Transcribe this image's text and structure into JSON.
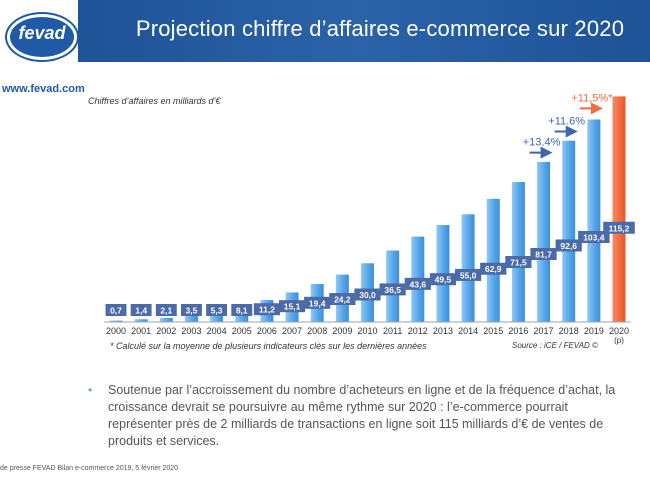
{
  "header": {
    "title": "Projection chiffre d’affaires e-commerce sur 2020"
  },
  "logo": {
    "text": "fevad",
    "url": "www.fevad.com"
  },
  "chart_data": {
    "type": "bar",
    "unit_label": "Chiffres d’affaires en milliards d’€",
    "categories": [
      "2000",
      "2001",
      "2002",
      "2003",
      "2004",
      "2005",
      "2006",
      "2007",
      "2008",
      "2009",
      "2010",
      "2011",
      "2012",
      "2013",
      "2014",
      "2015",
      "2016",
      "2017",
      "2018",
      "2019",
      "2020"
    ],
    "category_sublabels": {
      "2020": "(p)"
    },
    "values": [
      0.7,
      1.4,
      2.1,
      3.5,
      5.3,
      8.1,
      11.2,
      15.1,
      19.4,
      24.2,
      30.0,
      36.5,
      43.6,
      49.5,
      55.0,
      62.9,
      71.5,
      81.7,
      92.6,
      103.4,
      115.2
    ],
    "value_labels": [
      "0,7",
      "1,4",
      "2,1",
      "3,5",
      "5,3",
      "8,1",
      "11,2",
      "15,1",
      "19,4",
      "24,2",
      "30,0",
      "36,5",
      "43,6",
      "49,5",
      "55,0",
      "62,9",
      "71,5",
      "81,7",
      "92,6",
      "103,4",
      "115,2"
    ],
    "bar_color": "#5aa8e8",
    "highlight_color": "#f26a3d",
    "highlight_category": "2020",
    "label_color": "#4b6aa8",
    "growth_annotations": [
      {
        "category": "2017",
        "text": "+13.4%",
        "color": "#3f66b0"
      },
      {
        "category": "2018",
        "text": "+11.6%",
        "color": "#3f66b0"
      },
      {
        "category": "2019",
        "text": "+11,5%*",
        "color": "#f26a3d"
      }
    ],
    "ylim": [
      0,
      120
    ]
  },
  "note": "* Calculé sur la moyenne de plusieurs indicateurs clés sur les dernières années",
  "source": "Source : iCE / FEVAD ©",
  "bullet": "Soutenue par l’accroissement du nombre d’acheteurs en ligne et de la fréquence d’achat, la croissance devrait se poursuivre au même rythme sur 2020 : l’e-commerce pourrait représenter près de 2 milliards de transactions en ligne soit 115 milliards d’€ de ventes de produits et services.",
  "footer": "de presse FEVAD Bilan e-commerce 2019, 5 février 2020"
}
